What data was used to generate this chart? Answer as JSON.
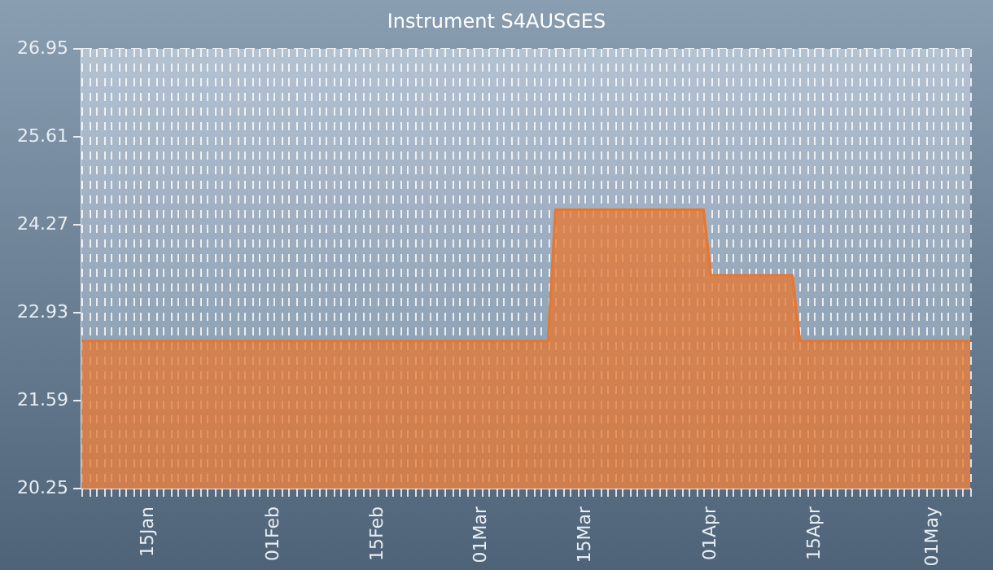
{
  "chart_data": {
    "type": "area",
    "title": "Instrument S4AUSGES",
    "x": [
      "--01-06",
      "--03-10",
      "--03-11",
      "--03-31",
      "--04-01",
      "--04-12",
      "--04-13",
      "--05-06"
    ],
    "series": [
      {
        "color": "#e8762e",
        "values": [
          22.5,
          22.5,
          24.5,
          24.5,
          23.5,
          23.5,
          22.5,
          22.5
        ],
        "line_style": "solid"
      }
    ],
    "xlim": [
      "--01-06",
      "--05-06"
    ],
    "xticks": [
      {
        "value": "--01-15",
        "label": "15Jan"
      },
      {
        "value": "--02-01",
        "label": "01Feb"
      },
      {
        "value": "--02-15",
        "label": "15Feb"
      },
      {
        "value": "--03-01",
        "label": "01Mar"
      },
      {
        "value": "--03-15",
        "label": "15Mar"
      },
      {
        "value": "--04-01",
        "label": "01Apr"
      },
      {
        "value": "--04-15",
        "label": "15Apr"
      },
      {
        "value": "--05-01",
        "label": "01May"
      }
    ],
    "ylim": [
      20.25,
      26.95
    ],
    "yticks": [
      20.25,
      21.59,
      22.93,
      24.27,
      25.61,
      26.95
    ],
    "grid": true,
    "legend": false,
    "marker": "none"
  }
}
